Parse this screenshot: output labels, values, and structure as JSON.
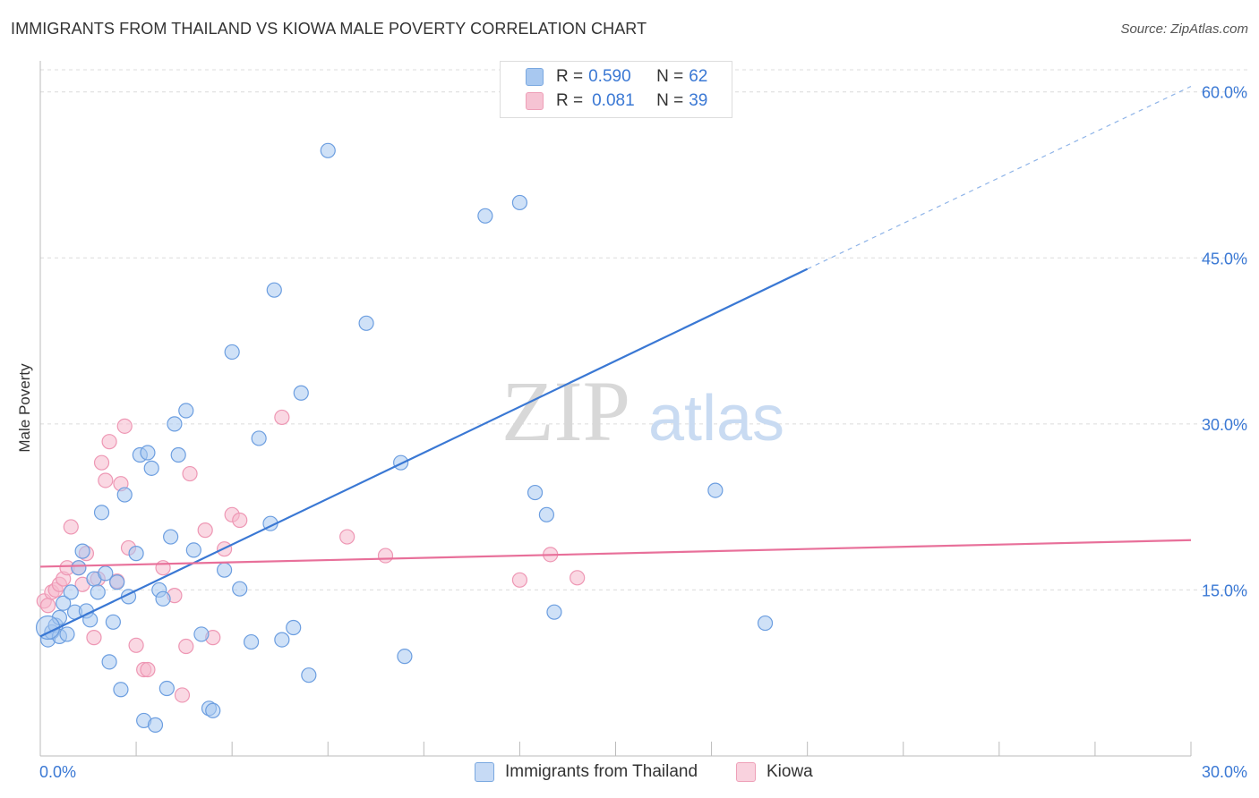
{
  "title": "IMMIGRANTS FROM THAILAND VS KIOWA MALE POVERTY CORRELATION CHART",
  "source": "Source: ZipAtlas.com",
  "watermark": {
    "zip": "ZIP",
    "atlas": "atlas"
  },
  "legend": {
    "series1": {
      "r_label": "R = ",
      "r_value": "0.590",
      "n_label": "N = ",
      "n_value": "62"
    },
    "series2": {
      "r_label": "R = ",
      "r_value": "0.081",
      "n_label": "N = ",
      "n_value": "39"
    }
  },
  "bottom_legend": {
    "series1": "Immigrants from Thailand",
    "series2": "Kiowa"
  },
  "colors": {
    "blue": "#3a78d4",
    "blue_fill": "#a8c8f0",
    "pink": "#e8709a",
    "pink_fill": "#f6b8cc",
    "tick": "#3a78d4"
  },
  "chart_data": {
    "type": "scatter",
    "title": "IMMIGRANTS FROM THAILAND VS KIOWA MALE POVERTY CORRELATION CHART",
    "xlabel": "",
    "ylabel": "Male Poverty",
    "xlim": [
      0,
      30
    ],
    "ylim": [
      0,
      62
    ],
    "x_tick_labels": [
      "0.0%",
      "30.0%"
    ],
    "y_ticks": [
      15,
      30,
      45,
      60
    ],
    "y_tick_labels": [
      "15.0%",
      "30.0%",
      "45.0%",
      "60.0%"
    ],
    "grid": true,
    "legend_position": "top-center",
    "series": [
      {
        "name": "Immigrants from Thailand",
        "color": "#3a78d4",
        "x": [
          0.2,
          0.3,
          0.4,
          0.5,
          0.5,
          0.6,
          0.7,
          0.8,
          0.9,
          1.0,
          1.1,
          1.2,
          1.3,
          1.4,
          1.5,
          1.6,
          1.7,
          1.8,
          1.9,
          2.0,
          2.1,
          2.2,
          2.3,
          2.5,
          2.6,
          2.7,
          2.8,
          2.9,
          3.0,
          3.1,
          3.2,
          3.3,
          3.4,
          3.5,
          3.6,
          3.8,
          4.0,
          4.2,
          4.4,
          4.5,
          4.8,
          5.0,
          5.2,
          5.5,
          5.7,
          6.0,
          6.1,
          6.3,
          6.6,
          6.8,
          7.0,
          7.5,
          8.5,
          9.4,
          9.5,
          11.6,
          12.5,
          12.9,
          13.2,
          13.4,
          17.6,
          18.9
        ],
        "y": [
          10.5,
          11.2,
          11.8,
          12.5,
          10.8,
          13.8,
          11.0,
          14.8,
          13.0,
          17.0,
          18.5,
          13.1,
          12.3,
          16.0,
          14.8,
          22.0,
          16.5,
          8.5,
          12.1,
          15.7,
          6.0,
          23.6,
          14.4,
          18.3,
          27.2,
          3.2,
          27.4,
          26.0,
          2.8,
          15.0,
          14.2,
          6.1,
          19.8,
          30.0,
          27.2,
          31.2,
          18.6,
          11.0,
          4.3,
          4.1,
          16.8,
          36.5,
          15.1,
          10.3,
          28.7,
          21.0,
          42.1,
          10.5,
          11.6,
          32.8,
          7.3,
          54.7,
          39.1,
          26.5,
          9.0,
          48.8,
          50.0,
          23.8,
          21.8,
          13.0,
          24.0,
          12.0
        ],
        "trendline": {
          "x": [
            0,
            20
          ],
          "y": [
            10.8,
            44.0
          ],
          "dashed_extension": {
            "x": [
              20,
              30
            ],
            "y": [
              44.0,
              60.5
            ]
          }
        }
      },
      {
        "name": "Kiowa",
        "color": "#e8709a",
        "x": [
          0.1,
          0.2,
          0.3,
          0.4,
          0.5,
          0.6,
          0.7,
          0.8,
          1.0,
          1.1,
          1.2,
          1.4,
          1.5,
          1.6,
          1.7,
          1.8,
          2.0,
          2.1,
          2.2,
          2.3,
          2.5,
          2.7,
          2.8,
          3.2,
          3.5,
          3.7,
          3.8,
          3.9,
          4.3,
          4.5,
          4.8,
          5.0,
          5.2,
          6.3,
          8.0,
          9.0,
          12.5,
          13.3,
          14.0
        ],
        "y": [
          14.0,
          13.6,
          14.8,
          15.0,
          15.5,
          16.0,
          17.0,
          20.7,
          17.0,
          15.5,
          18.3,
          10.7,
          16.0,
          26.5,
          24.9,
          28.4,
          15.8,
          24.6,
          29.8,
          18.8,
          10.0,
          7.8,
          7.8,
          17.0,
          14.5,
          5.5,
          9.9,
          25.5,
          20.4,
          10.7,
          18.7,
          21.8,
          21.3,
          30.6,
          19.8,
          18.1,
          15.9,
          18.2,
          16.1
        ],
        "trendline": {
          "x": [
            0,
            30
          ],
          "y": [
            17.1,
            19.5
          ]
        }
      }
    ]
  }
}
